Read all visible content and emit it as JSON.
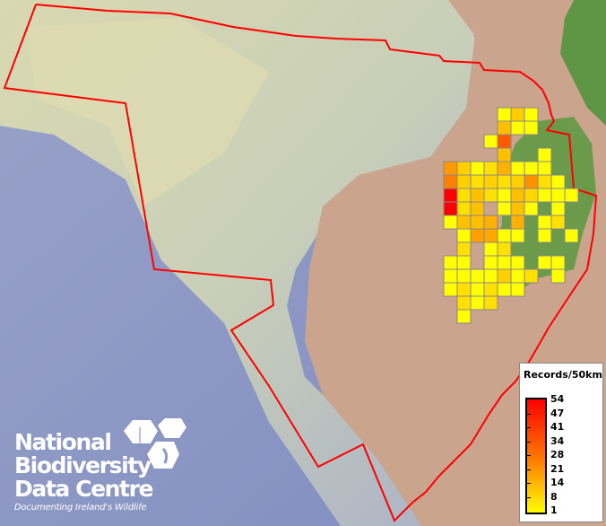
{
  "map": {
    "boundary_color": "#ff0000",
    "cell_border_color": "#888888",
    "grid": [
      {
        "row": 0,
        "cells": [
          [
            4,
            "#ffff00"
          ],
          [
            5,
            "#ffcc00"
          ],
          [
            6,
            "#ffff00"
          ]
        ]
      },
      {
        "row": 1,
        "cells": [
          [
            4,
            "#ffbf00"
          ],
          [
            5,
            "#ffff00"
          ],
          [
            6,
            "#ffff00"
          ]
        ]
      },
      {
        "row": 2,
        "cells": [
          [
            3,
            "#ffff00"
          ],
          [
            4,
            "#ff5a00"
          ]
        ]
      },
      {
        "row": 3,
        "cells": [
          [
            4,
            "#ffc000"
          ],
          [
            7,
            "#ffff00"
          ]
        ]
      },
      {
        "row": 4,
        "cells": [
          [
            0,
            "#ff9900"
          ],
          [
            1,
            "#ffd000"
          ],
          [
            2,
            "#ffff00"
          ],
          [
            3,
            "#ffe000"
          ],
          [
            4,
            "#ffb000"
          ],
          [
            5,
            "#ffff00"
          ],
          [
            6,
            "#ffff00"
          ],
          [
            7,
            "#ffff00"
          ]
        ]
      },
      {
        "row": 5,
        "cells": [
          [
            0,
            "#ff8000"
          ],
          [
            1,
            "#ffd000"
          ],
          [
            2,
            "#ffe000"
          ],
          [
            3,
            "#ffd000"
          ],
          [
            4,
            "#ffe000"
          ],
          [
            5,
            "#ffd000"
          ],
          [
            6,
            "#ff9000"
          ],
          [
            7,
            "#ffe000"
          ],
          [
            8,
            "#ffff00"
          ]
        ]
      },
      {
        "row": 6,
        "cells": [
          [
            0,
            "#ff0000"
          ],
          [
            1,
            "#ffe000"
          ],
          [
            2,
            "#ffc000"
          ],
          [
            3,
            "#ffe000"
          ],
          [
            4,
            "#ffff00"
          ],
          [
            5,
            "#ffc000"
          ],
          [
            6,
            "#ffd800"
          ],
          [
            7,
            "#ffff00"
          ],
          [
            8,
            "#ffff00"
          ],
          [
            9,
            "#ffff00"
          ]
        ]
      },
      {
        "row": 7,
        "cells": [
          [
            0,
            "#ff0000"
          ],
          [
            1,
            "#ffe000"
          ],
          [
            2,
            "#ffc000"
          ],
          [
            4,
            "#ffff00"
          ],
          [
            5,
            "#ffc000"
          ],
          [
            6,
            "#ffff00"
          ],
          [
            8,
            "#ffff00"
          ]
        ]
      },
      {
        "row": 8,
        "cells": [
          [
            0,
            "#ffff00"
          ],
          [
            1,
            "#ffc000"
          ],
          [
            2,
            "#ffc000"
          ],
          [
            3,
            "#ffb000"
          ],
          [
            5,
            "#ffb000"
          ],
          [
            7,
            "#ffff00"
          ],
          [
            8,
            "#ffe000"
          ]
        ]
      },
      {
        "row": 9,
        "cells": [
          [
            1,
            "#ffff00"
          ],
          [
            2,
            "#ffa000"
          ],
          [
            3,
            "#ffa800"
          ],
          [
            4,
            "#ffff00"
          ],
          [
            5,
            "#ffff00"
          ],
          [
            7,
            "#ffff00"
          ],
          [
            9,
            "#ffff00"
          ]
        ]
      },
      {
        "row": 10,
        "cells": [
          [
            1,
            "#ffe000"
          ],
          [
            3,
            "#ffff00"
          ],
          [
            4,
            "#ffe000"
          ]
        ]
      },
      {
        "row": 11,
        "cells": [
          [
            0,
            "#ffff00"
          ],
          [
            1,
            "#ffff00"
          ],
          [
            3,
            "#ffff00"
          ],
          [
            4,
            "#ffff00"
          ],
          [
            5,
            "#ffff00"
          ],
          [
            7,
            "#ffff00"
          ],
          [
            8,
            "#ffff00"
          ]
        ]
      },
      {
        "row": 12,
        "cells": [
          [
            0,
            "#ffff00"
          ],
          [
            1,
            "#ffff00"
          ],
          [
            2,
            "#ffff00"
          ],
          [
            3,
            "#ffff00"
          ],
          [
            4,
            "#ffd000"
          ],
          [
            5,
            "#ffff00"
          ],
          [
            6,
            "#ffe000"
          ],
          [
            8,
            "#ffff00"
          ]
        ]
      },
      {
        "row": 13,
        "cells": [
          [
            0,
            "#ffff00"
          ],
          [
            1,
            "#ffe000"
          ],
          [
            2,
            "#ffff00"
          ],
          [
            3,
            "#ffe000"
          ],
          [
            4,
            "#ffff00"
          ],
          [
            5,
            "#ffff00"
          ]
        ]
      },
      {
        "row": 14,
        "cells": [
          [
            1,
            "#ffe000"
          ],
          [
            2,
            "#ffff00"
          ],
          [
            3,
            "#ffe000"
          ]
        ]
      },
      {
        "row": 15,
        "cells": [
          [
            1,
            "#ffff00"
          ]
        ]
      }
    ]
  },
  "legend": {
    "title": "Records/50km",
    "labels": [
      "54",
      "47",
      "41",
      "34",
      "28",
      "21",
      "14",
      "8",
      "1"
    ],
    "color_max": "#ff0000",
    "color_min": "#ffff00"
  },
  "logo": {
    "line1": "National",
    "line2": "Biodiversity",
    "line3": "Data Centre",
    "tagline": "Documenting Ireland's Wildlife"
  }
}
